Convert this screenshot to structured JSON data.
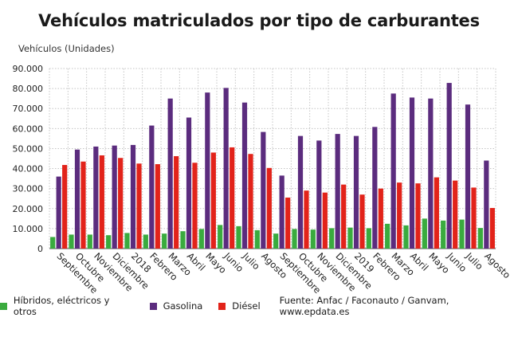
{
  "chart_data": {
    "type": "bar",
    "title": "Vehículos matriculados por tipo de carburantes",
    "ylabel": "Vehículos (Unidades)",
    "xlabel": "",
    "ylim": [
      0,
      90000
    ],
    "yticks": [
      "0",
      "10.000",
      "20.000",
      "30.000",
      "40.000",
      "50.000",
      "60.000",
      "70.000",
      "80.000",
      "90.000"
    ],
    "grid": true,
    "legend_position": "bottom",
    "categories": [
      "Septiembre",
      "Octubre",
      "Noviembre",
      "Diciembre",
      "2018",
      "Febrero",
      "Marzo",
      "Abril",
      "Mayo",
      "Junio",
      "Julio",
      "Agosto",
      "Septiembre",
      "Octubre",
      "Noviembre",
      "Diciembre",
      "2019",
      "Febrero",
      "Marzo",
      "Abril",
      "Mayo",
      "Junio",
      "Julio",
      "Agosto"
    ],
    "series": [
      {
        "name": "Híbridos, eléctricos y otros",
        "color": "#3aab3e",
        "values": [
          5800,
          7000,
          7000,
          6700,
          7800,
          7000,
          7500,
          8700,
          9800,
          11800,
          11200,
          9200,
          7500,
          9800,
          9500,
          10200,
          10500,
          10200,
          12400,
          11600,
          15000,
          14000,
          14500,
          10300
        ]
      },
      {
        "name": "Gasolina",
        "color": "#5b2c7e",
        "values": [
          36000,
          49500,
          51000,
          51500,
          51800,
          61500,
          75000,
          65500,
          78000,
          80300,
          73000,
          58300,
          36500,
          56300,
          54000,
          57300,
          56300,
          60800,
          77500,
          75500,
          75000,
          82800,
          72000,
          44000
        ]
      },
      {
        "name": "Diésel",
        "color": "#e2231a",
        "values": [
          41800,
          43500,
          46600,
          45300,
          42500,
          42200,
          46200,
          42900,
          48000,
          50600,
          47300,
          40300,
          25500,
          29000,
          28000,
          32000,
          27000,
          30000,
          33000,
          32600,
          35600,
          34000,
          30500,
          20300
        ]
      }
    ]
  },
  "source": "Fuente: Anfac / Faconauto / Ganvam, www.epdata.es"
}
